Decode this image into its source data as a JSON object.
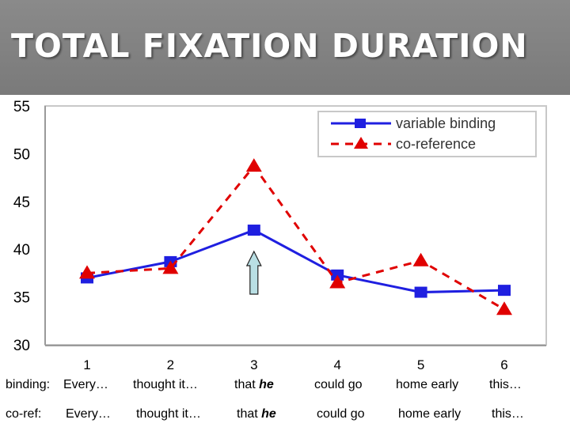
{
  "header": {
    "title": "TOTAL FIXATION DURATION"
  },
  "chart_data": {
    "type": "line",
    "x": [
      "1",
      "2",
      "3",
      "4",
      "5",
      "6"
    ],
    "ylim": [
      30,
      55
    ],
    "yticks": [
      30,
      35,
      40,
      45,
      50,
      55
    ],
    "grid": false,
    "legend_position": "top-right",
    "series": [
      {
        "name": "variable binding",
        "values": [
          37.0,
          38.7,
          42.0,
          37.3,
          35.5,
          35.7
        ],
        "color": "#1f1fe0",
        "style": "solid",
        "marker": "square"
      },
      {
        "name": "co-reference",
        "values": [
          37.5,
          38.0,
          48.7,
          36.5,
          38.8,
          33.7
        ],
        "color": "#e00000",
        "style": "dashed",
        "marker": "triangle"
      }
    ],
    "annotation": {
      "type": "up-arrow",
      "at_x": "3"
    }
  },
  "rows": [
    {
      "label": "binding:",
      "cells": [
        {
          "text": "Every…"
        },
        {
          "text": "thought it…"
        },
        {
          "pre": "that ",
          "em": "he"
        },
        {
          "text": "could go"
        },
        {
          "text": "home early"
        },
        {
          "text": "this…"
        }
      ]
    },
    {
      "label": "co-ref:",
      "cells": [
        {
          "text": "Every…"
        },
        {
          "text": "thought it…"
        },
        {
          "pre": "that ",
          "em": "he"
        },
        {
          "text": "could go"
        },
        {
          "text": "home early"
        },
        {
          "text": "this…"
        }
      ]
    }
  ]
}
